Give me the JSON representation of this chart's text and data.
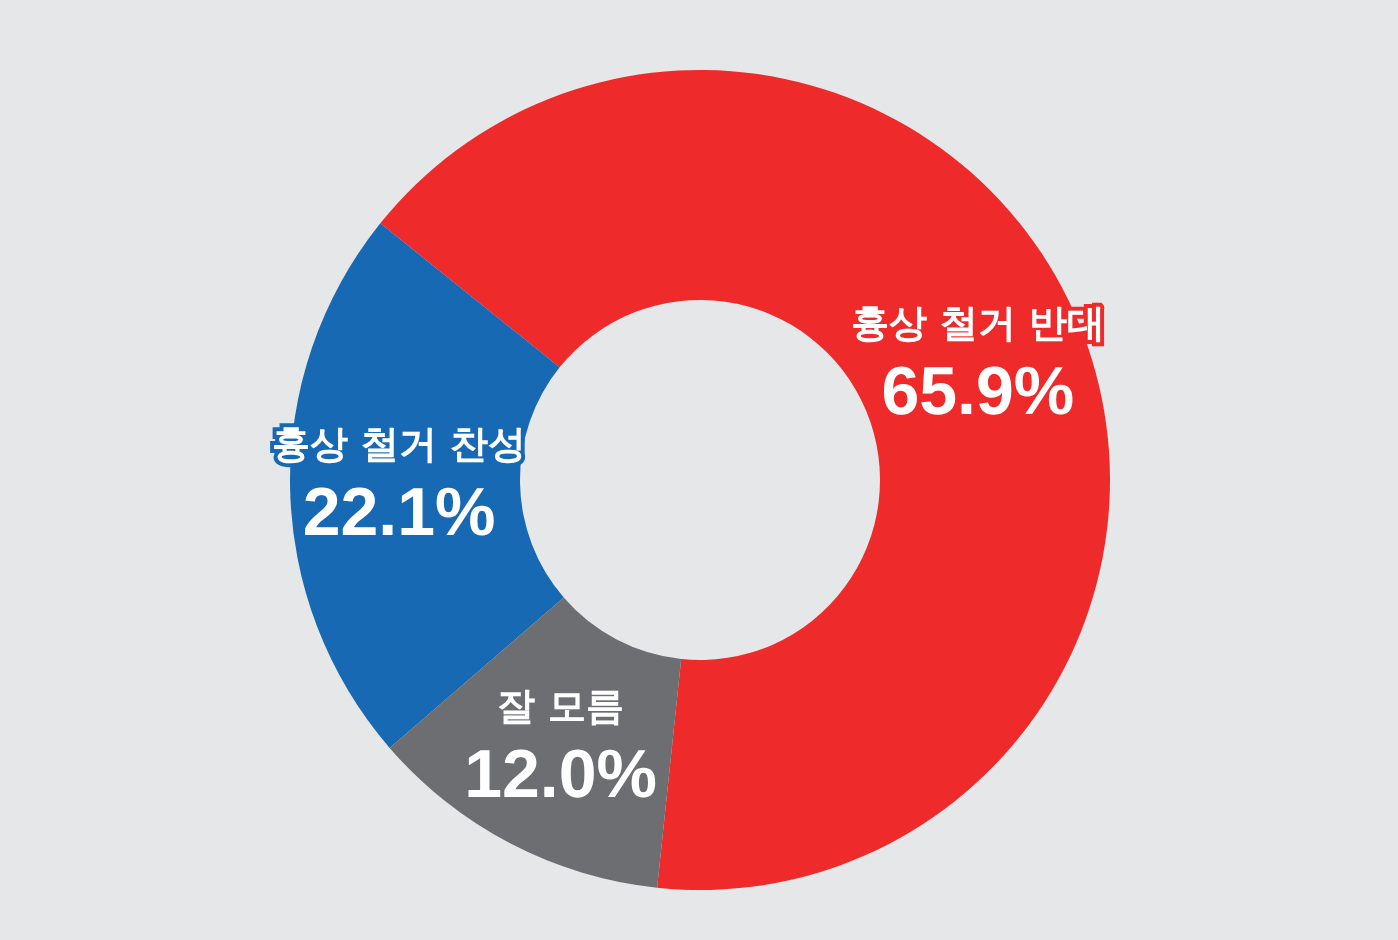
{
  "chart_data": {
    "type": "donut",
    "categories": [
      "흉상 철거 반대",
      "흉상 철거 찬성",
      "잘 모름"
    ],
    "values": [
      65.9,
      22.1,
      12.0
    ],
    "value_labels": [
      "65.9%",
      "22.1%",
      "12.0%"
    ],
    "colors": [
      "#ee2a2a",
      "#1769b3",
      "#6d6e71"
    ],
    "legend": false
  }
}
